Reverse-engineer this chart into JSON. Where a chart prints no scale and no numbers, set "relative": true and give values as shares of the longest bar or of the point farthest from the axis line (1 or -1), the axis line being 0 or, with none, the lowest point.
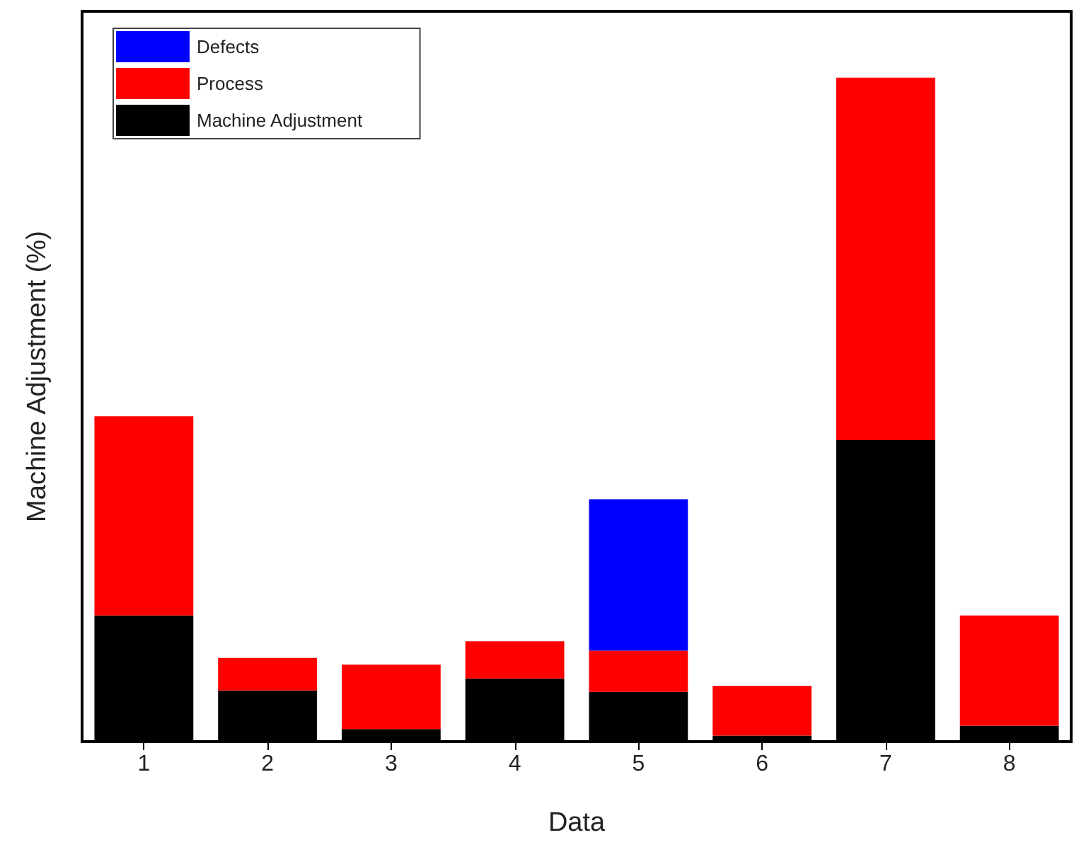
{
  "chart_data": {
    "type": "bar",
    "stacked": true,
    "relative": true,
    "xlabel": "Data",
    "ylabel": "Machine Adjustment (%)",
    "categories": [
      "1",
      "2",
      "3",
      "4",
      "5",
      "6",
      "7",
      "8"
    ],
    "series": [
      {
        "name": "Machine Adjustment",
        "color": "#000000",
        "values": [
          0.19,
          0.077,
          0.019,
          0.095,
          0.075,
          0.009,
          0.454,
          0.024
        ]
      },
      {
        "name": "Process",
        "color": "#ff0000",
        "values": [
          0.3,
          0.049,
          0.097,
          0.056,
          0.062,
          0.075,
          0.546,
          0.166
        ]
      },
      {
        "name": "Defects",
        "color": "#0000ff",
        "values": [
          null,
          null,
          null,
          null,
          0.228,
          null,
          null,
          null
        ]
      }
    ],
    "legend": "top left",
    "tick_labels": "x",
    "grid": false
  }
}
